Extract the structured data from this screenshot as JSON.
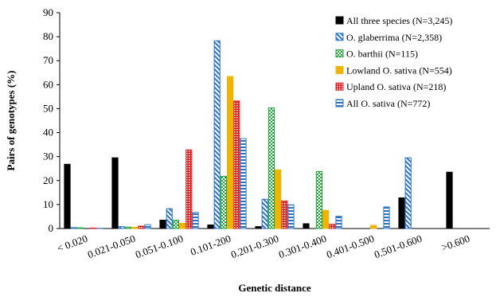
{
  "chart_data": {
    "type": "bar",
    "title": "",
    "xlabel": "Genetic distance",
    "ylabel": "Pairs of genotypes (%)",
    "ylim": [
      0,
      90
    ],
    "yticks": [
      0,
      10,
      20,
      30,
      40,
      50,
      60,
      70,
      80,
      90
    ],
    "grid": false,
    "legend_position": "top-right",
    "categories": [
      "< 0.020",
      "0.021-0.050",
      "0.051-0.100",
      "0.101-200",
      "0.201-0.300",
      "0.301-0.400",
      "0.401-0.500",
      "0.501-0.600",
      ">0.600"
    ],
    "series": [
      {
        "name": "All three species (N=3,245)",
        "color": "#000000",
        "pattern": "solid",
        "values": [
          26.8,
          29.5,
          3.5,
          1.5,
          0.8,
          2.0,
          0,
          12.8,
          23.5
        ]
      },
      {
        "name": "O. glaberrima (N=2,358)",
        "color": "#2e74c6",
        "pattern": "diagonal",
        "values": [
          0.4,
          0.8,
          8.3,
          78.3,
          12.2,
          0,
          0,
          29.5,
          0
        ]
      },
      {
        "name": "O. barthii (N=115)",
        "color": "#1fa33a",
        "pattern": "checker",
        "values": [
          0.3,
          0.6,
          3.5,
          21.8,
          50.3,
          23.8,
          0,
          0,
          0
        ]
      },
      {
        "name": "Lowland O. sativa (N=554)",
        "color": "#f0b400",
        "pattern": "solid",
        "values": [
          0,
          0.5,
          2.2,
          63.4,
          24.5,
          7.6,
          1.3,
          0,
          0
        ]
      },
      {
        "name": "Upland O. sativa (N=218)",
        "color": "#e02020",
        "pattern": "grid",
        "values": [
          0.2,
          1.0,
          32.8,
          53.2,
          11.5,
          1.8,
          0,
          0,
          0
        ]
      },
      {
        "name": "All O. sativa (N=772)",
        "color": "#2e74c6",
        "pattern": "horizontal",
        "values": [
          0.1,
          1.6,
          6.7,
          37.5,
          9.9,
          5.1,
          9.0,
          0,
          0
        ]
      }
    ]
  }
}
